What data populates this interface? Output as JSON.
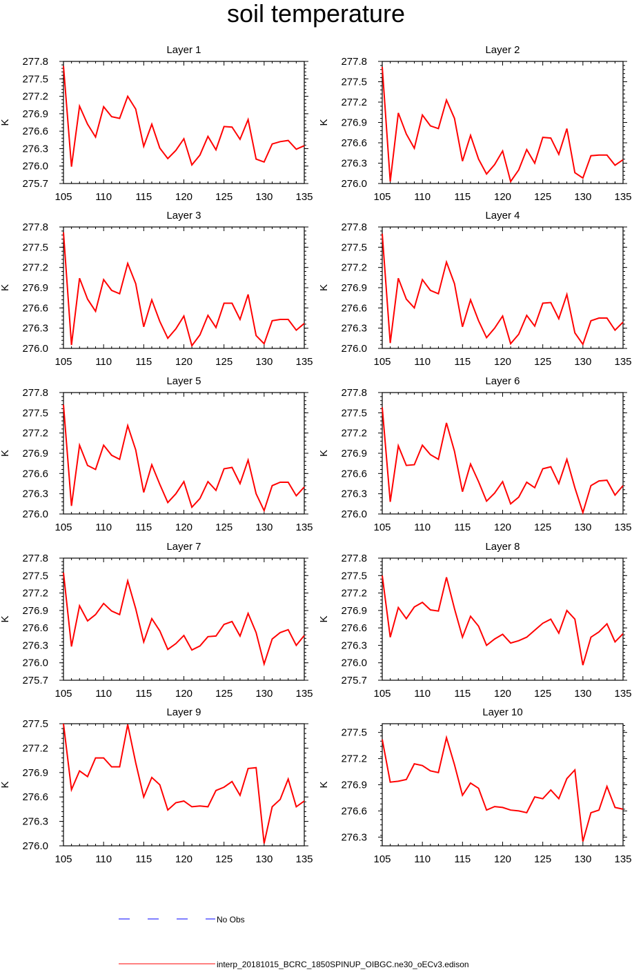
{
  "title": "soil temperature",
  "colors": {
    "model_line": "#ff0000",
    "obs_line": "#0000ff",
    "axes": "#000000"
  },
  "legend": [
    {
      "label": "No Obs",
      "style": "dashed",
      "color": "#0000ff"
    },
    {
      "label": "interp_20181015_BCRC_1850SPINUP_OIBGC.ne30_oECv3.edison",
      "style": "solid",
      "color": "#ff0000"
    }
  ],
  "chart_data": [
    {
      "type": "line",
      "title": "Layer 1",
      "ylabel": "K",
      "xlim": [
        105,
        135
      ],
      "ylim": [
        275.7,
        277.8
      ],
      "yticks": [
        "275.7",
        "276.0",
        "276.3",
        "276.6",
        "276.9",
        "277.2",
        "277.5",
        "277.8"
      ],
      "xticks": [
        "105",
        "110",
        "115",
        "120",
        "125",
        "130",
        "135"
      ],
      "series": [
        {
          "x": [
            105,
            106,
            107,
            108,
            109,
            110,
            111,
            112,
            113,
            114,
            115,
            116,
            117,
            118,
            119,
            120,
            121,
            122,
            123,
            124,
            125,
            126,
            127,
            128,
            129,
            130,
            131,
            132,
            133,
            134,
            135
          ],
          "values": [
            277.72,
            275.99,
            277.03,
            276.72,
            276.5,
            277.02,
            276.85,
            276.82,
            277.2,
            276.98,
            276.34,
            276.72,
            276.31,
            276.13,
            276.27,
            276.47,
            276.02,
            276.19,
            276.51,
            276.28,
            276.68,
            276.67,
            276.46,
            276.8,
            276.12,
            276.07,
            276.38,
            276.42,
            276.44,
            276.29,
            276.35
          ]
        }
      ]
    },
    {
      "type": "line",
      "title": "Layer 2",
      "ylabel": "K",
      "xlim": [
        105,
        135
      ],
      "ylim": [
        276.0,
        277.8
      ],
      "yticks": [
        "276.0",
        "276.3",
        "276.6",
        "276.9",
        "277.2",
        "277.5",
        "277.8"
      ],
      "xticks": [
        "105",
        "110",
        "115",
        "120",
        "125",
        "130",
        "135"
      ],
      "series": [
        {
          "x": [
            105,
            106,
            107,
            108,
            109,
            110,
            111,
            112,
            113,
            114,
            115,
            116,
            117,
            118,
            119,
            120,
            121,
            122,
            123,
            124,
            125,
            126,
            127,
            128,
            129,
            130,
            131,
            132,
            133,
            134,
            135
          ],
          "values": [
            277.72,
            276.03,
            277.04,
            276.73,
            276.52,
            277.01,
            276.85,
            276.81,
            277.23,
            276.96,
            276.33,
            276.71,
            276.36,
            276.14,
            276.28,
            276.48,
            276.03,
            276.2,
            276.5,
            276.3,
            276.68,
            276.67,
            276.43,
            276.81,
            276.16,
            276.08,
            276.41,
            276.42,
            276.42,
            276.27,
            276.35
          ]
        }
      ]
    },
    {
      "type": "line",
      "title": "Layer 3",
      "ylabel": "K",
      "xlim": [
        105,
        135
      ],
      "ylim": [
        276.0,
        277.8
      ],
      "yticks": [
        "276.0",
        "276.3",
        "276.6",
        "276.9",
        "277.2",
        "277.5",
        "277.8"
      ],
      "xticks": [
        "105",
        "110",
        "115",
        "120",
        "125",
        "130",
        "135"
      ],
      "series": [
        {
          "x": [
            105,
            106,
            107,
            108,
            109,
            110,
            111,
            112,
            113,
            114,
            115,
            116,
            117,
            118,
            119,
            120,
            121,
            122,
            123,
            124,
            125,
            126,
            127,
            128,
            129,
            130,
            131,
            132,
            133,
            134,
            135
          ],
          "values": [
            277.72,
            276.05,
            277.04,
            276.73,
            276.55,
            277.02,
            276.86,
            276.81,
            277.26,
            276.96,
            276.32,
            276.72,
            276.4,
            276.15,
            276.29,
            276.48,
            276.04,
            276.2,
            276.49,
            276.31,
            276.67,
            276.67,
            276.43,
            276.8,
            276.19,
            276.07,
            276.41,
            276.43,
            276.43,
            276.27,
            276.37
          ]
        }
      ]
    },
    {
      "type": "line",
      "title": "Layer 4",
      "ylabel": "K",
      "xlim": [
        105,
        135
      ],
      "ylim": [
        276.0,
        277.8
      ],
      "yticks": [
        "276.0",
        "276.3",
        "276.6",
        "276.9",
        "277.2",
        "277.5",
        "277.8"
      ],
      "xticks": [
        "105",
        "110",
        "115",
        "120",
        "125",
        "130",
        "135"
      ],
      "series": [
        {
          "x": [
            105,
            106,
            107,
            108,
            109,
            110,
            111,
            112,
            113,
            114,
            115,
            116,
            117,
            118,
            119,
            120,
            121,
            122,
            123,
            124,
            125,
            126,
            127,
            128,
            129,
            130,
            131,
            132,
            133,
            134,
            135
          ],
          "values": [
            277.7,
            276.08,
            277.04,
            276.73,
            276.6,
            277.02,
            276.86,
            276.81,
            277.28,
            276.96,
            276.32,
            276.72,
            276.41,
            276.16,
            276.3,
            276.48,
            276.07,
            276.21,
            276.49,
            276.33,
            276.67,
            276.68,
            276.44,
            276.8,
            276.23,
            276.06,
            276.41,
            276.45,
            276.45,
            276.27,
            276.39
          ]
        }
      ]
    },
    {
      "type": "line",
      "title": "Layer 5",
      "ylabel": "K",
      "xlim": [
        105,
        135
      ],
      "ylim": [
        276.0,
        277.8
      ],
      "yticks": [
        "276.0",
        "276.3",
        "276.6",
        "276.9",
        "277.2",
        "277.5",
        "277.8"
      ],
      "xticks": [
        "105",
        "110",
        "115",
        "120",
        "125",
        "130",
        "135"
      ],
      "series": [
        {
          "x": [
            105,
            106,
            107,
            108,
            109,
            110,
            111,
            112,
            113,
            114,
            115,
            116,
            117,
            118,
            119,
            120,
            121,
            122,
            123,
            124,
            125,
            126,
            127,
            128,
            129,
            130,
            131,
            132,
            133,
            134,
            135
          ],
          "values": [
            277.62,
            276.12,
            277.02,
            276.72,
            276.66,
            277.02,
            276.87,
            276.81,
            277.31,
            276.95,
            276.32,
            276.73,
            276.44,
            276.17,
            276.3,
            276.48,
            276.1,
            276.23,
            276.48,
            276.35,
            276.67,
            276.69,
            276.45,
            276.8,
            276.3,
            276.05,
            276.42,
            276.47,
            276.47,
            276.27,
            276.4
          ]
        }
      ]
    },
    {
      "type": "line",
      "title": "Layer 6",
      "ylabel": "K",
      "xlim": [
        105,
        135
      ],
      "ylim": [
        276.0,
        277.8
      ],
      "yticks": [
        "276.0",
        "276.3",
        "276.6",
        "276.9",
        "277.2",
        "277.5",
        "277.8"
      ],
      "xticks": [
        "105",
        "110",
        "115",
        "120",
        "125",
        "130",
        "135"
      ],
      "series": [
        {
          "x": [
            105,
            106,
            107,
            108,
            109,
            110,
            111,
            112,
            113,
            114,
            115,
            116,
            117,
            118,
            119,
            120,
            121,
            122,
            123,
            124,
            125,
            126,
            127,
            128,
            129,
            130,
            131,
            132,
            133,
            134,
            135
          ],
          "values": [
            277.58,
            276.18,
            277.01,
            276.72,
            276.73,
            277.02,
            276.88,
            276.81,
            277.35,
            276.93,
            276.33,
            276.74,
            276.48,
            276.19,
            276.31,
            276.48,
            276.15,
            276.25,
            276.47,
            276.39,
            276.67,
            276.7,
            276.45,
            276.81,
            276.39,
            276.02,
            276.42,
            276.49,
            276.5,
            276.28,
            276.42
          ]
        }
      ]
    },
    {
      "type": "line",
      "title": "Layer 7",
      "ylabel": "K",
      "xlim": [
        105,
        135
      ],
      "ylim": [
        275.7,
        277.8
      ],
      "yticks": [
        "275.7",
        "276.0",
        "276.3",
        "276.6",
        "276.9",
        "277.2",
        "277.5",
        "277.8"
      ],
      "xticks": [
        "105",
        "110",
        "115",
        "120",
        "125",
        "130",
        "135"
      ],
      "series": [
        {
          "x": [
            105,
            106,
            107,
            108,
            109,
            110,
            111,
            112,
            113,
            114,
            115,
            116,
            117,
            118,
            119,
            120,
            121,
            122,
            123,
            124,
            125,
            126,
            127,
            128,
            129,
            130,
            131,
            132,
            133,
            134,
            135
          ],
          "values": [
            277.55,
            276.28,
            276.98,
            276.72,
            276.83,
            277.02,
            276.89,
            276.83,
            277.41,
            276.93,
            276.36,
            276.76,
            276.55,
            276.23,
            276.33,
            276.47,
            276.22,
            276.29,
            276.45,
            276.46,
            276.66,
            276.71,
            276.46,
            276.85,
            276.52,
            275.98,
            276.41,
            276.52,
            276.57,
            276.3,
            276.47
          ]
        }
      ]
    },
    {
      "type": "line",
      "title": "Layer 8",
      "ylabel": "K",
      "xlim": [
        105,
        135
      ],
      "ylim": [
        275.7,
        277.8
      ],
      "yticks": [
        "275.7",
        "276.0",
        "276.3",
        "276.6",
        "276.9",
        "277.2",
        "277.5",
        "277.8"
      ],
      "xticks": [
        "105",
        "110",
        "115",
        "120",
        "125",
        "130",
        "135"
      ],
      "series": [
        {
          "x": [
            105,
            106,
            107,
            108,
            109,
            110,
            111,
            112,
            113,
            114,
            115,
            116,
            117,
            118,
            119,
            120,
            121,
            122,
            123,
            124,
            125,
            126,
            127,
            128,
            129,
            130,
            131,
            132,
            133,
            134,
            135
          ],
          "values": [
            277.5,
            276.44,
            276.95,
            276.76,
            276.96,
            277.04,
            276.91,
            276.89,
            277.47,
            276.93,
            276.44,
            276.8,
            276.63,
            276.3,
            276.41,
            276.49,
            276.34,
            276.38,
            276.44,
            276.56,
            276.68,
            276.75,
            276.51,
            276.9,
            276.75,
            275.96,
            276.44,
            276.53,
            276.67,
            276.36,
            276.5
          ]
        }
      ]
    },
    {
      "type": "line",
      "title": "Layer 9",
      "ylabel": "K",
      "xlim": [
        105,
        135
      ],
      "ylim": [
        276.0,
        277.5
      ],
      "yticks": [
        "276.0",
        "276.3",
        "276.6",
        "276.9",
        "277.2",
        "277.5"
      ],
      "xticks": [
        "105",
        "110",
        "115",
        "120",
        "125",
        "130",
        "135"
      ],
      "series": [
        {
          "x": [
            105,
            106,
            107,
            108,
            109,
            110,
            111,
            112,
            113,
            114,
            115,
            116,
            117,
            118,
            119,
            120,
            121,
            122,
            123,
            124,
            125,
            126,
            127,
            128,
            129,
            130,
            131,
            132,
            133,
            134,
            135
          ],
          "values": [
            277.5,
            276.69,
            276.92,
            276.85,
            277.08,
            277.08,
            276.97,
            276.97,
            277.49,
            277.02,
            276.6,
            276.84,
            276.75,
            276.44,
            276.53,
            276.55,
            276.48,
            276.49,
            276.48,
            276.68,
            276.72,
            276.79,
            276.62,
            276.95,
            276.96,
            276.03,
            276.48,
            276.57,
            276.82,
            276.48,
            276.55
          ]
        }
      ]
    },
    {
      "type": "line",
      "title": "Layer 10",
      "ylabel": "K",
      "xlim": [
        105,
        135
      ],
      "ylim": [
        276.2,
        277.6
      ],
      "yticks": [
        "276.3",
        "276.6",
        "276.9",
        "277.2",
        "277.5"
      ],
      "xticks": [
        "105",
        "110",
        "115",
        "120",
        "125",
        "130",
        "135"
      ],
      "series": [
        {
          "x": [
            105,
            106,
            107,
            108,
            109,
            110,
            111,
            112,
            113,
            114,
            115,
            116,
            117,
            118,
            119,
            120,
            121,
            122,
            123,
            124,
            125,
            126,
            127,
            128,
            129,
            130,
            131,
            132,
            133,
            134,
            135
          ],
          "values": [
            277.42,
            276.93,
            276.94,
            276.96,
            277.14,
            277.12,
            277.06,
            277.04,
            277.44,
            277.13,
            276.78,
            276.92,
            276.86,
            276.61,
            276.65,
            276.64,
            276.61,
            276.6,
            276.58,
            276.76,
            276.74,
            276.84,
            276.74,
            276.97,
            277.07,
            276.25,
            276.58,
            276.61,
            276.88,
            276.64,
            276.62
          ]
        }
      ]
    }
  ]
}
